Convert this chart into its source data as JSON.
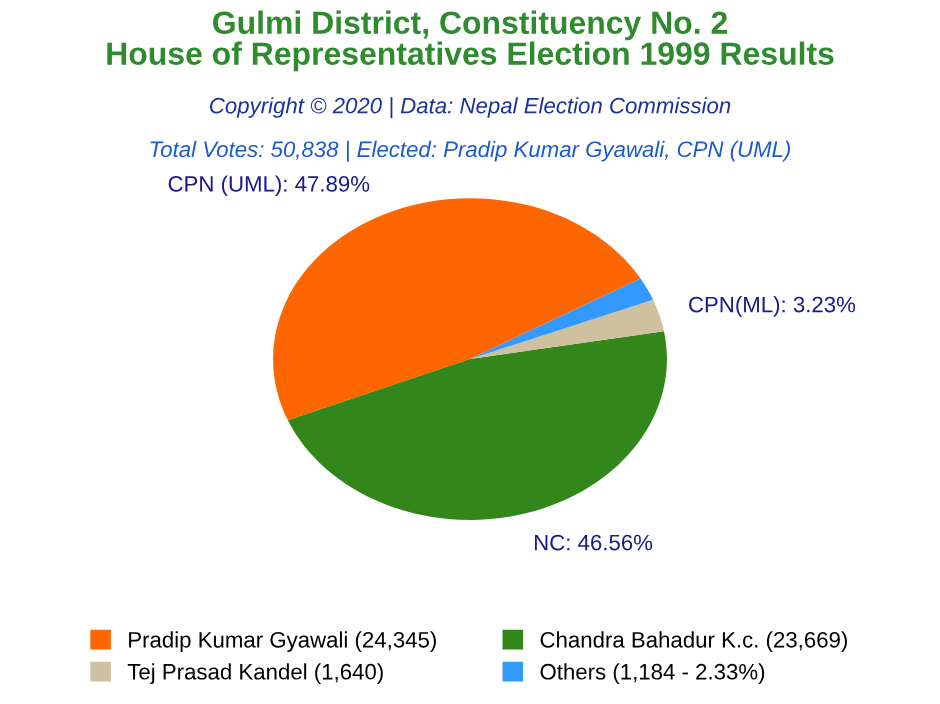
{
  "chart_data": {
    "type": "pie",
    "title": "Gulmi District, Constituency No. 2\nHouse of Representatives Election 1999 Results",
    "subtitle": "Copyright © 2020 | Data: Nepal Election Commission",
    "annotations": [
      "Total Votes: 50,838 | Elected: Pradip Kumar Gyawali, CPN (UML)"
    ],
    "categories": [
      "Pradip Kumar Gyawali (24,345)",
      "Chandra Bahadur K.c. (23,669)",
      "Tej Prasad Kandel (1,640)",
      "Others (1,184 - 2.33%)"
    ],
    "values": [
      47.89,
      46.56,
      3.23,
      2.33
    ],
    "colors": [
      "#ff6600",
      "#33861a",
      "#cfc09f",
      "#3399ff"
    ],
    "value_labels": [
      "CPN (UML): 47.89%",
      "NC: 46.56%",
      "CPN(ML): 3.23%",
      null
    ],
    "legend": "bottom"
  }
}
